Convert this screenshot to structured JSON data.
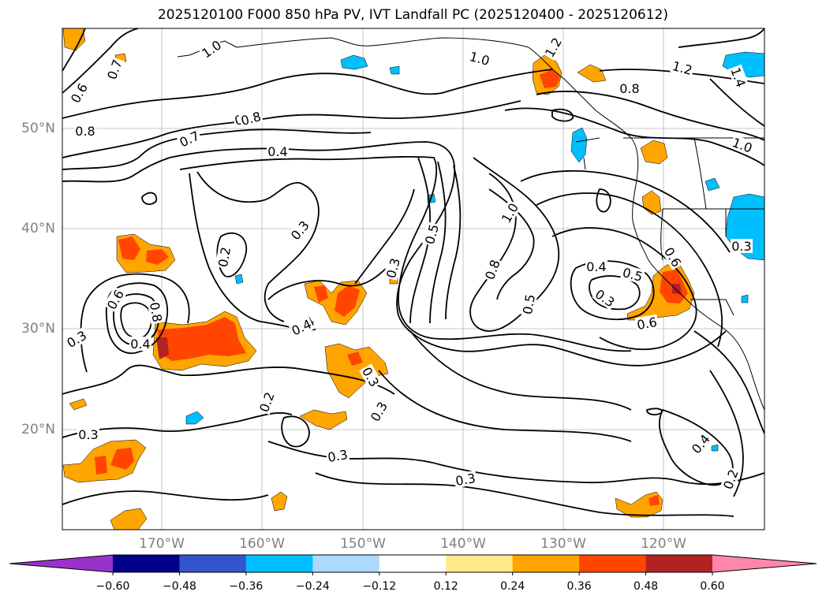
{
  "title": "2025120100 F000 850 hPa PV, IVT Landfall PC (2025120400 - 2025120612)",
  "longitude_labels": [
    "170°W",
    "160°W",
    "150°W",
    "140°W",
    "130°W",
    "120°W"
  ],
  "latitude_labels": [
    "50°N",
    "40°N",
    "30°N",
    "20°N"
  ],
  "colorbar": {
    "ticks": [
      "−0.60",
      "−0.48",
      "−0.36",
      "−0.24",
      "−0.12",
      "0.12",
      "0.24",
      "0.36",
      "0.48",
      "0.60"
    ],
    "colors": [
      "#9932cc",
      "#00008b",
      "#3355cc",
      "#00bfff",
      "#add8ff",
      "#ffffff",
      "#ffe98a",
      "#ffa500",
      "#ff4500",
      "#b22222",
      "#ff88aa"
    ]
  },
  "contour_labels": [
    "0.6",
    "0.7",
    "1.0",
    "0.8",
    "0.8",
    "0.7",
    "0.8",
    "0.4",
    "1.0",
    "1.2",
    "1.2",
    "0.8",
    "1.4",
    "1.0",
    "0.3",
    "0.2",
    "0.3",
    "0.5",
    "0.4",
    "0.3",
    "1.0",
    "0.8",
    "0.5",
    "0.4",
    "0.3",
    "0.5",
    "0.6",
    "0.6",
    "0.3",
    "0.6",
    "0.3",
    "0.8",
    "0.4",
    "0.3",
    "0.3",
    "0.3",
    "0.4",
    "0.3",
    "0.2",
    "0.4",
    "0.2"
  ],
  "colors": {
    "positive_fill": "#ffa500",
    "strong_positive_fill": "#ff4500",
    "negative_fill": "#00bfff",
    "contour": "#000000",
    "grid": "#999999"
  }
}
